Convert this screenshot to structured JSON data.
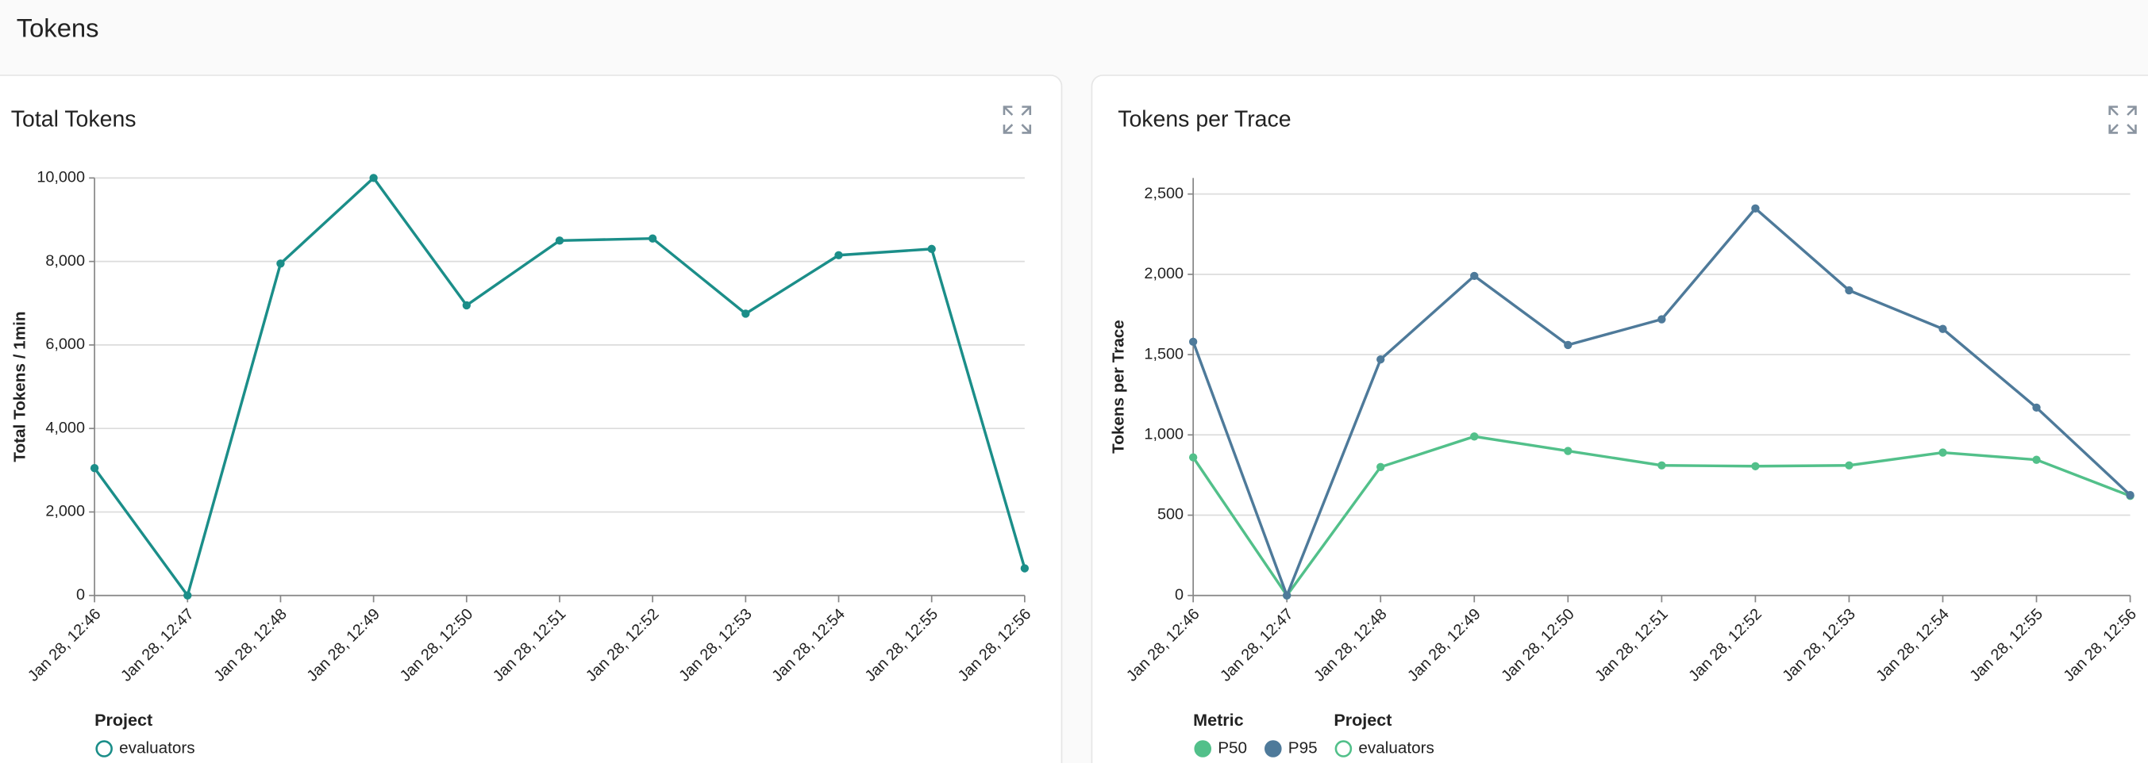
{
  "header": {
    "title": "Tokens"
  },
  "chart_data": [
    {
      "type": "line",
      "title": "Total Tokens",
      "y_label": "Total Tokens / 1min",
      "categories": [
        "Jan 28, 12:46",
        "Jan 28, 12:47",
        "Jan 28, 12:48",
        "Jan 28, 12:49",
        "Jan 28, 12:50",
        "Jan 28, 12:51",
        "Jan 28, 12:52",
        "Jan 28, 12:53",
        "Jan 28, 12:54",
        "Jan 28, 12:55",
        "Jan 28, 12:56"
      ],
      "series": [
        {
          "name": "evaluators",
          "color": "#1b8e89",
          "values": [
            3050,
            0,
            7950,
            10000,
            6950,
            8500,
            8550,
            6750,
            8150,
            8300,
            650
          ]
        }
      ],
      "ylim": [
        0,
        10000
      ],
      "yticks": [
        0,
        {
          "value": 2000,
          "label": "2,000"
        },
        {
          "value": 4000,
          "label": "4,000"
        },
        {
          "value": 6000,
          "label": "6,000"
        },
        {
          "value": 8000,
          "label": "8,000"
        },
        {
          "value": 10000,
          "label": "10,000"
        }
      ],
      "grid": true,
      "legend_title": "Project"
    },
    {
      "type": "line",
      "title": "Tokens per Trace",
      "y_label": "Tokens per Trace",
      "categories": [
        "Jan 28, 12:46",
        "Jan 28, 12:47",
        "Jan 28, 12:48",
        "Jan 28, 12:49",
        "Jan 28, 12:50",
        "Jan 28, 12:51",
        "Jan 28, 12:52",
        "Jan 28, 12:53",
        "Jan 28, 12:54",
        "Jan 28, 12:55",
        "Jan 28, 12:56"
      ],
      "series": [
        {
          "name": "P50",
          "color": "#52c08a",
          "values": [
            860,
            0,
            800,
            990,
            900,
            810,
            805,
            810,
            890,
            845,
            620
          ]
        },
        {
          "name": "P95",
          "color": "#4e7a9a",
          "values": [
            1580,
            0,
            1470,
            1990,
            1560,
            1720,
            2410,
            1900,
            1660,
            1170,
            625
          ]
        }
      ],
      "ylim": [
        0,
        2600
      ],
      "yticks": [
        0,
        500,
        {
          "value": 1000,
          "label": "1,000"
        },
        {
          "value": 1500,
          "label": "1,500"
        },
        {
          "value": 2000,
          "label": "2,000"
        },
        {
          "value": 2500,
          "label": "2,500"
        }
      ],
      "grid": true,
      "legend_title": "Metric",
      "project_legend": {
        "title": "Project",
        "items": [
          "evaluators"
        ],
        "color": "#52c08a"
      }
    }
  ]
}
